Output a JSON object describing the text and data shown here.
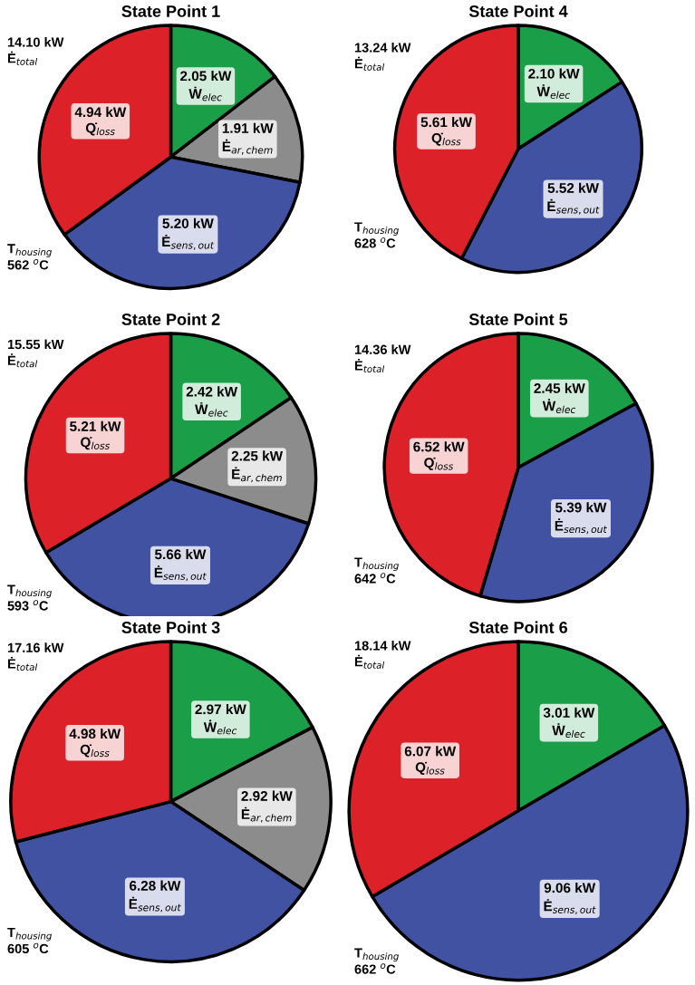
{
  "chart_data": [
    {
      "type": "pie",
      "title": "State Point 1",
      "categories": [
        "Ẇ$_{elec}$",
        "Ė$_{ar,chem}$",
        "Ė$_{sens,out}$",
        "Q̇$_{loss}$"
      ],
      "values": [
        2.05,
        1.91,
        5.2,
        4.94
      ],
      "value_labels": [
        "2.05 kW",
        "1.91 kW",
        "5.20 kW",
        "4.94 kW"
      ],
      "colors": [
        "#1a9e48",
        "#8c8c8c",
        "#4252a3",
        "#dc2128"
      ],
      "annotations": [
        "14.10 kW",
        "Ė$_{total}$",
        "T$_{housing}$",
        "562 $^{o}$C"
      ]
    },
    {
      "type": "pie",
      "title": "State Point 4",
      "categories": [
        "Ẇ$_{elec}$",
        "Ė$_{sens,out}$",
        "Q̇$_{loss}$"
      ],
      "values": [
        2.1,
        5.52,
        5.61
      ],
      "value_labels": [
        "2.10 kW",
        "5.52 kW",
        "5.61 kW"
      ],
      "colors": [
        "#1a9e48",
        "#4252a3",
        "#dc2128"
      ],
      "annotations": [
        "13.24 kW",
        "Ė$_{total}$",
        "T$_{housing}$",
        "628 $^{o}$C"
      ]
    },
    {
      "type": "pie",
      "title": "State Point 2",
      "categories": [
        "Ẇ$_{elec}$",
        "Ė$_{ar,chem}$",
        "Ė$_{sens,out}$",
        "Q̇$_{loss}$"
      ],
      "values": [
        2.42,
        2.25,
        5.66,
        5.21
      ],
      "value_labels": [
        "2.42 kW",
        "2.25 kW",
        "5.66 kW",
        "5.21 kW"
      ],
      "colors": [
        "#1a9e48",
        "#8c8c8c",
        "#4252a3",
        "#dc2128"
      ],
      "annotations": [
        "15.55 kW",
        "Ė$_{total}$",
        "T$_{housing}$",
        "593 $^{o}$C"
      ]
    },
    {
      "type": "pie",
      "title": "State Point 5",
      "categories": [
        "Ẇ$_{elec}$",
        "Ė$_{sens,out}$",
        "Q̇$_{loss}$"
      ],
      "values": [
        2.45,
        5.39,
        6.52
      ],
      "value_labels": [
        "2.45 kW",
        "5.39 kW",
        "6.52 kW"
      ],
      "colors": [
        "#1a9e48",
        "#4252a3",
        "#dc2128"
      ],
      "annotations": [
        "14.36 kW",
        "Ė$_{total}$",
        "T$_{housing}$",
        "642 $^{o}$C"
      ]
    },
    {
      "type": "pie",
      "title": "State Point 3",
      "categories": [
        "Ẇ$_{elec}$",
        "Ė$_{ar,chem}$",
        "Ė$_{sens,out}$",
        "Q̇$_{loss}$"
      ],
      "values": [
        2.97,
        2.92,
        6.28,
        4.98
      ],
      "value_labels": [
        "2.97 kW",
        "2.92 kW",
        "6.28 kW",
        "4.98 kW"
      ],
      "colors": [
        "#1a9e48",
        "#8c8c8c",
        "#4252a3",
        "#dc2128"
      ],
      "annotations": [
        "17.16 kW",
        "Ė$_{total}$",
        "T$_{housing}$",
        "605 $^{o}$C"
      ]
    },
    {
      "type": "pie",
      "title": "State Point 6",
      "categories": [
        "Ẇ$_{elec}$",
        "Ė$_{sens,out}$",
        "Q̇$_{loss}$"
      ],
      "values": [
        3.01,
        9.06,
        6.07
      ],
      "value_labels": [
        "3.01 kW",
        "9.06 kW",
        "6.07 kW"
      ],
      "colors": [
        "#1a9e48",
        "#4252a3",
        "#dc2128"
      ],
      "annotations": [
        "18.14 kW",
        "Ė$_{total}$",
        "T$_{housing}$",
        "662 $^{o}$C"
      ]
    }
  ]
}
